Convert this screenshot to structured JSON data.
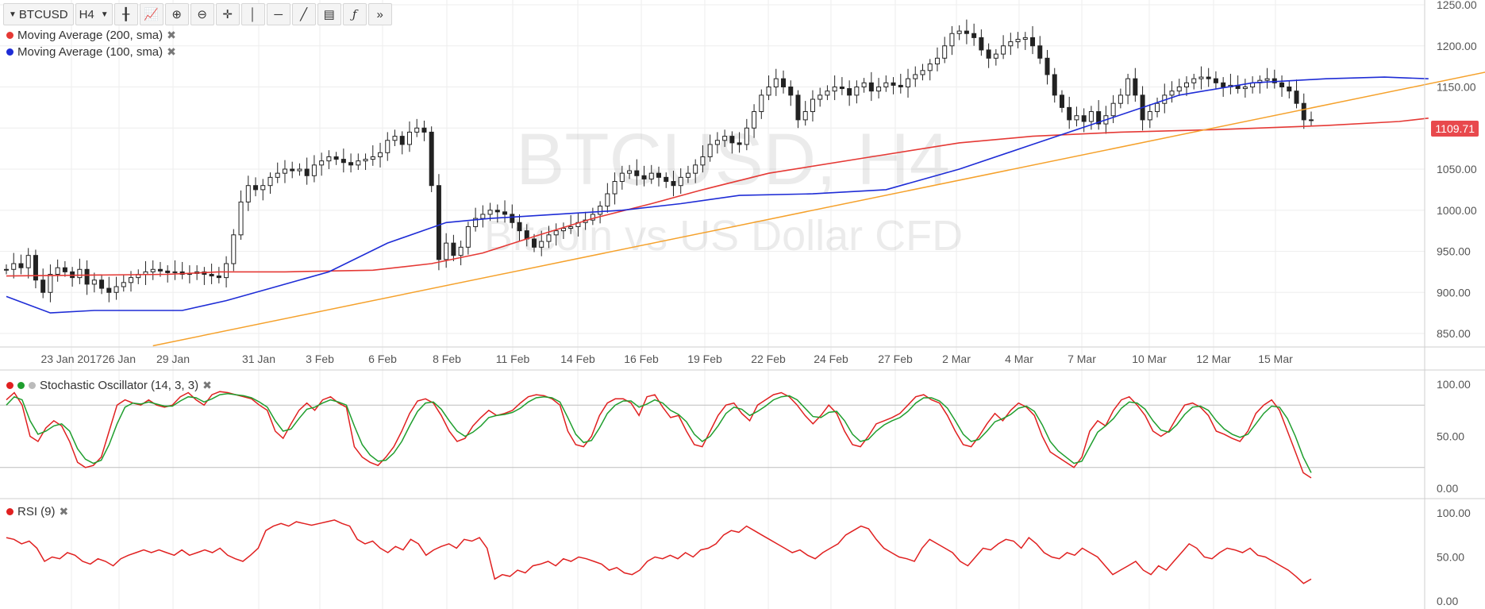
{
  "toolbar": {
    "symbol": "BTCUSD",
    "interval": "H4",
    "icons": [
      "bar-style-icon",
      "indicators-icon",
      "zoom-in-icon",
      "zoom-out-icon",
      "crosshair-icon",
      "vertical-line-icon",
      "horizontal-line-icon",
      "trend-line-icon",
      "fib-icon",
      "formula-icon",
      "more-tools-icon"
    ]
  },
  "legends": {
    "ma200": "Moving Average (200, sma)",
    "ma100": "Moving Average (100, sma)",
    "stoch": "Stochastic Oscillator (14, 3, 3)",
    "rsi": "RSI (9)"
  },
  "watermark": {
    "line1": "BTCUSD, H4",
    "line2": "Bitcoin vs US Dollar CFD"
  },
  "last_price": "1109.71",
  "colors": {
    "ma200": "#e53935",
    "ma100": "#1e2cd6",
    "trend": "#f5a12b",
    "stoch_k": "#e02020",
    "stoch_d": "#1f9e2e",
    "rsi": "#e02020",
    "candle": "#222222",
    "price_tag": "#e8494d"
  },
  "chart_data": [
    {
      "type": "candlestick",
      "ylim": [
        830,
        1250
      ],
      "yticks": [
        "1250.00",
        "1200.00",
        "1150.00",
        "1100.00",
        "1050.00",
        "1000.00",
        "950.00",
        "900.00",
        "850.00"
      ],
      "xticks": [
        "23 Jan 2017",
        "26 Jan",
        "29 Jan",
        "31 Jan",
        "3 Feb",
        "6 Feb",
        "8 Feb",
        "11 Feb",
        "14 Feb",
        "16 Feb",
        "19 Feb",
        "22 Feb",
        "24 Feb",
        "27 Feb",
        "2 Mar",
        "4 Mar",
        "7 Mar",
        "10 Mar",
        "12 Mar",
        "15 Mar"
      ],
      "close": [
        928,
        935,
        930,
        945,
        915,
        900,
        922,
        930,
        925,
        918,
        928,
        910,
        915,
        905,
        900,
        907,
        912,
        918,
        922,
        925,
        928,
        926,
        924,
        925,
        922,
        923,
        925,
        922,
        920,
        918,
        935,
        970,
        1010,
        1030,
        1025,
        1030,
        1040,
        1045,
        1050,
        1048,
        1050,
        1042,
        1055,
        1060,
        1065,
        1062,
        1058,
        1055,
        1060,
        1062,
        1065,
        1070,
        1085,
        1090,
        1080,
        1095,
        1100,
        1095,
        1030,
        940,
        960,
        945,
        955,
        980,
        990,
        995,
        1000,
        998,
        995,
        985,
        975,
        965,
        955,
        962,
        970,
        975,
        978,
        980,
        985,
        988,
        995,
        1005,
        1020,
        1035,
        1045,
        1048,
        1042,
        1038,
        1045,
        1040,
        1035,
        1030,
        1040,
        1045,
        1055,
        1065,
        1080,
        1085,
        1090,
        1082,
        1080,
        1100,
        1120,
        1140,
        1150,
        1160,
        1150,
        1140,
        1110,
        1120,
        1135,
        1140,
        1145,
        1150,
        1148,
        1140,
        1150,
        1155,
        1145,
        1150,
        1155,
        1152,
        1150,
        1160,
        1165,
        1170,
        1178,
        1185,
        1200,
        1215,
        1218,
        1215,
        1210,
        1195,
        1185,
        1190,
        1200,
        1205,
        1208,
        1210,
        1200,
        1185,
        1165,
        1140,
        1125,
        1110,
        1115,
        1108,
        1120,
        1105,
        1115,
        1130,
        1140,
        1160,
        1140,
        1110,
        1120,
        1130,
        1140,
        1145,
        1150,
        1155,
        1160,
        1162,
        1160,
        1155,
        1150,
        1152,
        1148,
        1150,
        1155,
        1158,
        1160,
        1155,
        1150,
        1145,
        1130,
        1110,
        1109.71
      ],
      "series": [
        {
          "name": "Moving Average (200, sma)",
          "x": [
            0,
            22,
            29,
            38,
            50,
            58,
            65,
            72,
            80,
            88,
            95,
            104,
            118,
            130,
            140,
            152,
            165,
            180,
            190,
            194
          ],
          "values": [
            920,
            922,
            925,
            925,
            927,
            935,
            948,
            968,
            990,
            1008,
            1025,
            1045,
            1065,
            1082,
            1090,
            1095,
            1098,
            1103,
            1108,
            1112
          ]
        },
        {
          "name": "Moving Average (100, sma)",
          "x": [
            0,
            6,
            12,
            24,
            30,
            36,
            44,
            52,
            60,
            66,
            75,
            84,
            92,
            100,
            110,
            120,
            130,
            140,
            150,
            160,
            170,
            180,
            188,
            194
          ],
          "values": [
            895,
            875,
            878,
            878,
            890,
            905,
            925,
            960,
            985,
            990,
            995,
            1000,
            1008,
            1018,
            1020,
            1025,
            1050,
            1080,
            1110,
            1140,
            1155,
            1160,
            1162,
            1160
          ]
        },
        {
          "name": "Trend",
          "x": [
            20,
            210
          ],
          "values": [
            835,
            1183
          ]
        }
      ]
    },
    {
      "type": "line",
      "ylim": [
        0,
        100
      ],
      "yticks": [
        "100.00",
        "50.00",
        "0.00"
      ],
      "series": [
        {
          "name": "%K",
          "values": [
            85,
            92,
            80,
            50,
            45,
            58,
            65,
            60,
            45,
            25,
            20,
            22,
            30,
            55,
            80,
            85,
            82,
            80,
            85,
            80,
            78,
            80,
            88,
            92,
            85,
            80,
            90,
            93,
            92,
            90,
            88,
            86,
            80,
            75,
            55,
            48,
            62,
            75,
            82,
            75,
            85,
            88,
            82,
            78,
            40,
            30,
            25,
            22,
            30,
            40,
            55,
            72,
            84,
            86,
            82,
            70,
            55,
            45,
            48,
            60,
            68,
            75,
            70,
            72,
            75,
            82,
            88,
            90,
            89,
            86,
            80,
            55,
            42,
            40,
            50,
            70,
            82,
            86,
            86,
            82,
            70,
            88,
            90,
            78,
            68,
            70,
            55,
            42,
            40,
            55,
            70,
            80,
            82,
            72,
            65,
            80,
            85,
            90,
            92,
            88,
            80,
            70,
            62,
            70,
            80,
            72,
            55,
            42,
            40,
            50,
            62,
            65,
            68,
            72,
            80,
            88,
            90,
            85,
            82,
            70,
            55,
            42,
            40,
            50,
            62,
            72,
            65,
            75,
            82,
            78,
            70,
            50,
            35,
            30,
            25,
            20,
            30,
            55,
            65,
            60,
            75,
            85,
            88,
            80,
            70,
            55,
            50,
            55,
            68,
            80,
            82,
            78,
            70,
            55,
            52,
            48,
            45,
            55,
            72,
            80,
            85,
            75,
            55,
            35,
            15,
            10
          ],
          "x_step": 1
        },
        {
          "name": "%D",
          "values": [
            80,
            88,
            85,
            65,
            52,
            55,
            60,
            62,
            55,
            38,
            28,
            24,
            27,
            42,
            62,
            78,
            82,
            81,
            83,
            81,
            79,
            79,
            84,
            88,
            87,
            83,
            86,
            90,
            91,
            90,
            89,
            87,
            83,
            78,
            65,
            55,
            57,
            67,
            76,
            78,
            82,
            85,
            83,
            80,
            60,
            42,
            32,
            26,
            27,
            34,
            45,
            60,
            74,
            82,
            83,
            76,
            65,
            55,
            50,
            54,
            60,
            68,
            70,
            71,
            73,
            77,
            83,
            87,
            88,
            87,
            83,
            68,
            52,
            44,
            46,
            58,
            72,
            80,
            84,
            84,
            78,
            81,
            85,
            82,
            75,
            71,
            64,
            52,
            45,
            50,
            60,
            72,
            78,
            76,
            70,
            74,
            79,
            85,
            88,
            89,
            85,
            77,
            69,
            68,
            73,
            74,
            65,
            52,
            45,
            47,
            55,
            61,
            65,
            68,
            74,
            82,
            87,
            87,
            84,
            77,
            65,
            52,
            45,
            47,
            55,
            64,
            67,
            71,
            77,
            79,
            74,
            61,
            45,
            36,
            30,
            24,
            26,
            40,
            54,
            60,
            67,
            77,
            83,
            82,
            76,
            65,
            56,
            54,
            61,
            71,
            78,
            79,
            75,
            65,
            57,
            52,
            49,
            52,
            62,
            72,
            79,
            78,
            67,
            50,
            30,
            15
          ],
          "x_step": 1
        }
      ]
    },
    {
      "type": "line",
      "ylim": [
        0,
        100
      ],
      "yticks": [
        "100.00",
        "50.00",
        "0.00"
      ],
      "series": [
        {
          "name": "RSI (9)",
          "values": [
            72,
            70,
            65,
            68,
            60,
            45,
            50,
            48,
            55,
            52,
            45,
            42,
            48,
            45,
            40,
            48,
            52,
            55,
            58,
            55,
            58,
            55,
            52,
            58,
            52,
            55,
            58,
            55,
            60,
            52,
            48,
            45,
            52,
            60,
            80,
            85,
            88,
            85,
            90,
            88,
            86,
            88,
            90,
            92,
            88,
            85,
            70,
            65,
            68,
            60,
            55,
            62,
            58,
            70,
            65,
            52,
            58,
            62,
            65,
            60,
            70,
            68,
            72,
            60,
            25,
            30,
            28,
            35,
            32,
            40,
            42,
            45,
            40,
            48,
            45,
            50,
            48,
            45,
            42,
            35,
            38,
            32,
            30,
            35,
            45,
            50,
            48,
            52,
            48,
            55,
            50,
            58,
            60,
            65,
            75,
            80,
            78,
            85,
            80,
            75,
            70,
            65,
            60,
            55,
            58,
            52,
            48,
            55,
            60,
            65,
            75,
            80,
            85,
            82,
            70,
            60,
            55,
            50,
            48,
            45,
            60,
            70,
            65,
            60,
            55,
            45,
            40,
            50,
            60,
            58,
            65,
            70,
            68,
            60,
            72,
            65,
            55,
            50,
            48,
            55,
            52,
            60,
            55,
            50,
            40,
            30,
            35,
            40,
            45,
            35,
            30,
            40,
            35,
            45,
            55,
            65,
            60,
            50,
            48,
            55,
            60,
            58,
            55,
            60,
            52,
            50,
            45,
            40,
            35,
            28,
            20,
            25
          ]
        }
      ]
    }
  ]
}
